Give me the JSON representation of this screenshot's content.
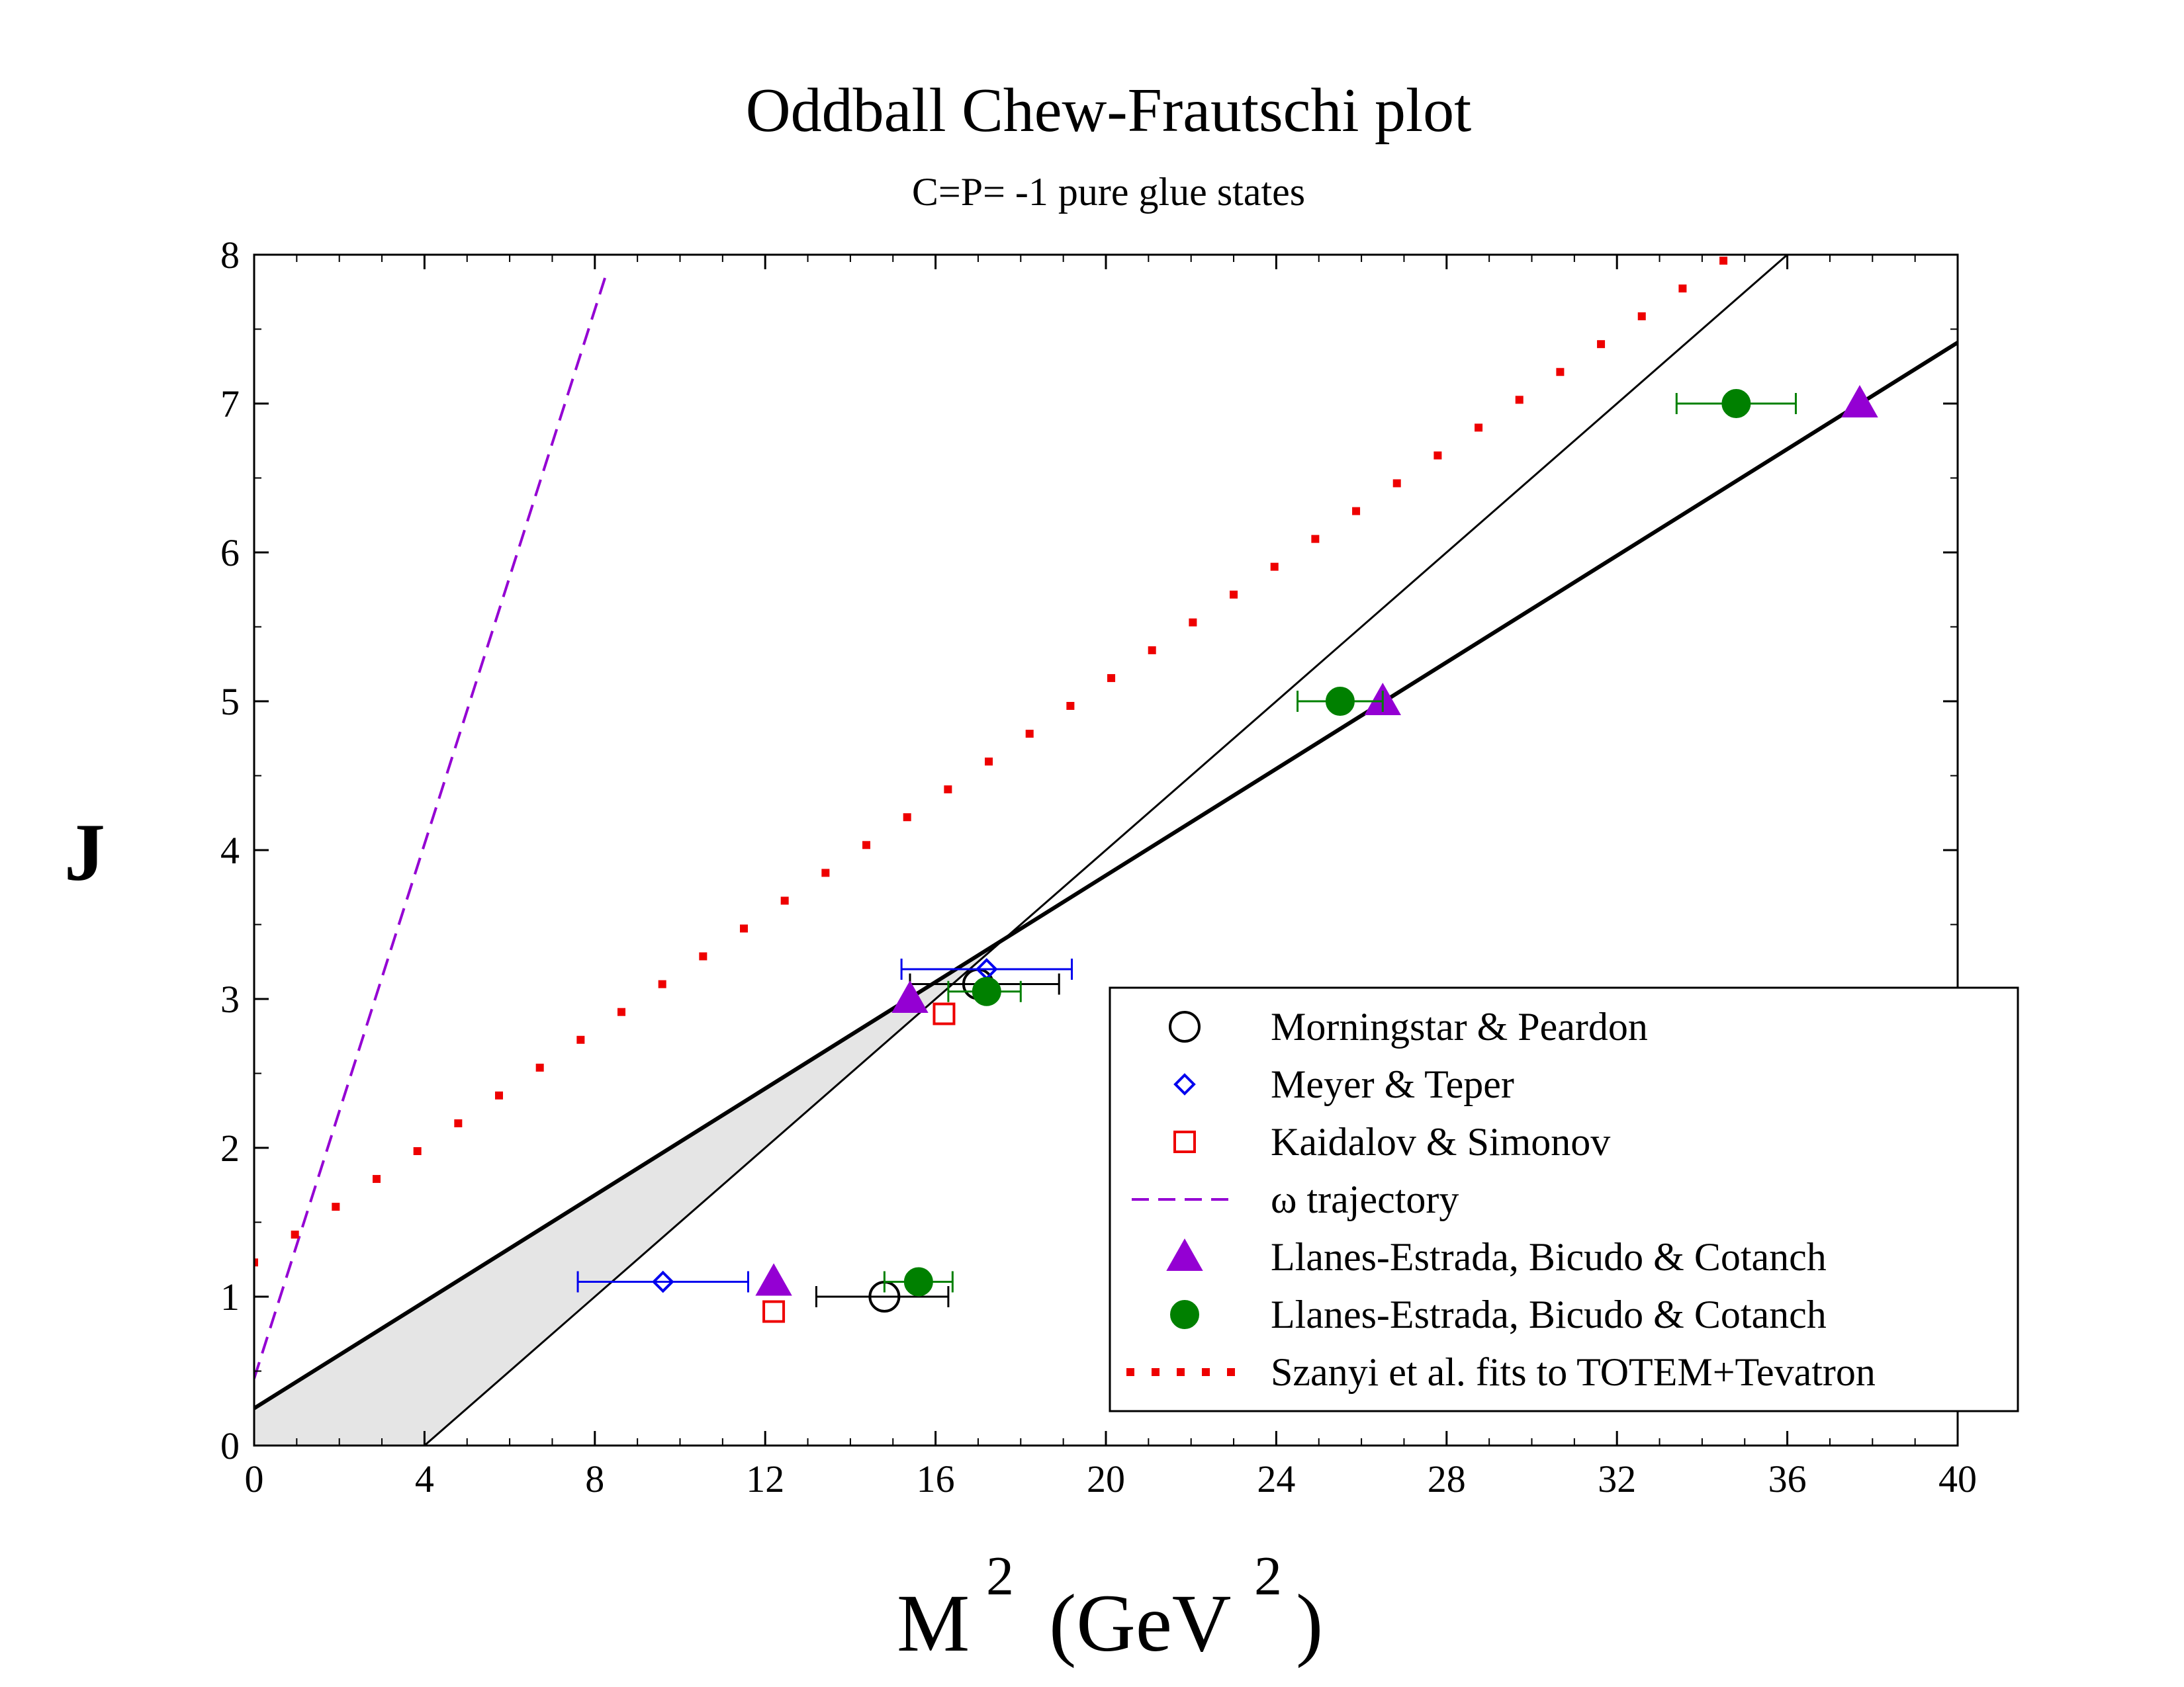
{
  "chart_data": {
    "type": "scatter",
    "title": "Oddball Chew-Frautschi plot",
    "subtitle": "C=P= -1 pure glue states",
    "xlabel": {
      "main": "M",
      "sup1": "2",
      "unit": "(GeV",
      "sup2": "2",
      "close": ")"
    },
    "ylabel": "J",
    "xlim": [
      0,
      40
    ],
    "ylim": [
      0,
      8
    ],
    "x_ticks": [
      0,
      4,
      8,
      12,
      16,
      20,
      24,
      28,
      32,
      36,
      40
    ],
    "y_ticks": [
      0,
      1,
      2,
      3,
      4,
      5,
      6,
      7,
      8
    ],
    "legend_position": "bottom-right",
    "band": {
      "fill": "#e5e5e5",
      "upper_line": {
        "intercept": 0.25,
        "slope": 0.179
      },
      "lower_line": {
        "intercept": -1.0,
        "slope": 0.25
      }
    },
    "series": [
      {
        "name": "Morningstar & Peardon",
        "marker": "circle-open",
        "color": "#000000",
        "points": [
          {
            "x": 14.8,
            "y": 1.0,
            "xerr": [
              13.2,
              16.3
            ]
          },
          {
            "x": 17.0,
            "y": 3.1,
            "xerr": [
              15.4,
              18.9
            ]
          }
        ]
      },
      {
        "name": "Meyer & Teper",
        "marker": "diamond-open",
        "color": "#0000ee",
        "points": [
          {
            "x": 9.6,
            "y": 1.1,
            "xerr": [
              7.6,
              11.6
            ]
          },
          {
            "x": 17.2,
            "y": 3.2,
            "xerr": [
              15.2,
              19.2
            ]
          }
        ]
      },
      {
        "name": "Kaidalov & Simonov",
        "marker": "square-open",
        "color": "#ee0000",
        "points": [
          {
            "x": 12.2,
            "y": 0.9
          },
          {
            "x": 16.2,
            "y": 2.9
          }
        ]
      },
      {
        "name": "ω  trajectory",
        "marker": "dashed-line",
        "color": "#9400d3",
        "line": {
          "x0": 0.0,
          "y0": 0.45,
          "x1": 8.3,
          "y1": 7.9
        }
      },
      {
        "name": "Llanes-Estrada, Bicudo & Cotanch",
        "marker": "triangle-filled",
        "color": "#9400d3",
        "points": [
          {
            "x": 12.2,
            "y": 1.1
          },
          {
            "x": 15.4,
            "y": 3.0
          },
          {
            "x": 26.5,
            "y": 5.0
          },
          {
            "x": 37.7,
            "y": 7.0
          }
        ]
      },
      {
        "name": "Llanes-Estrada, Bicudo & Cotanch",
        "marker": "circle-filled",
        "color": "#008000",
        "points": [
          {
            "x": 15.6,
            "y": 1.1,
            "xerr": [
              14.8,
              16.4
            ]
          },
          {
            "x": 17.2,
            "y": 3.05,
            "xerr": [
              16.3,
              18.0
            ]
          },
          {
            "x": 25.5,
            "y": 5.0,
            "xerr": [
              24.5,
              26.5
            ]
          },
          {
            "x": 34.8,
            "y": 7.0,
            "xerr": [
              33.4,
              36.2
            ]
          }
        ]
      },
      {
        "name": "Szanyi et al. fits to TOTEM+Tevatron",
        "marker": "dotted-line",
        "color": "#ee0000",
        "line": {
          "x0": 0.0,
          "y0": 1.23,
          "x1": 34.5,
          "y1": 7.96
        }
      }
    ]
  }
}
